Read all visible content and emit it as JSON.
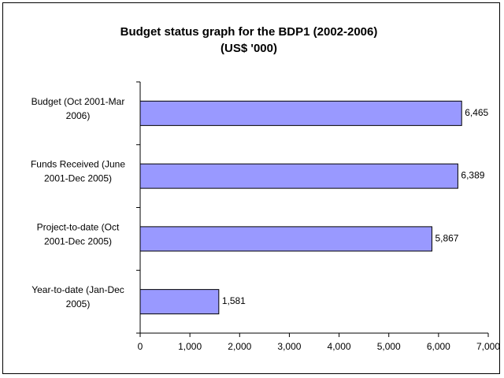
{
  "colors": {
    "bar_fill": "#9999ff",
    "bar_stroke": "#000000",
    "axis": "#000000",
    "background": "#ffffff"
  },
  "chart_data": {
    "type": "bar",
    "orientation": "horizontal",
    "title": [
      "Budget status graph for the BDP1 (2002-2006)",
      "(US$ '000)"
    ],
    "categories": [
      [
        "Budget (Oct 2001-Mar",
        "2006)"
      ],
      [
        "Funds Received (June",
        "2001-Dec 2005)"
      ],
      [
        "Project-to-date (Oct",
        "2001-Dec 2005)"
      ],
      [
        "Year-to-date (Jan-Dec",
        "2005)"
      ]
    ],
    "values": [
      6465,
      6389,
      5867,
      1581
    ],
    "data_labels": [
      "6,465",
      "6,389",
      "5,867",
      "1,581"
    ],
    "xlim": [
      0,
      7000
    ],
    "xticks": [
      0,
      1000,
      2000,
      3000,
      4000,
      5000,
      6000,
      7000
    ],
    "xtick_labels": [
      "0",
      "1,000",
      "2,000",
      "3,000",
      "4,000",
      "5,000",
      "6,000",
      "7,000"
    ],
    "grid": false,
    "legend": "none"
  }
}
